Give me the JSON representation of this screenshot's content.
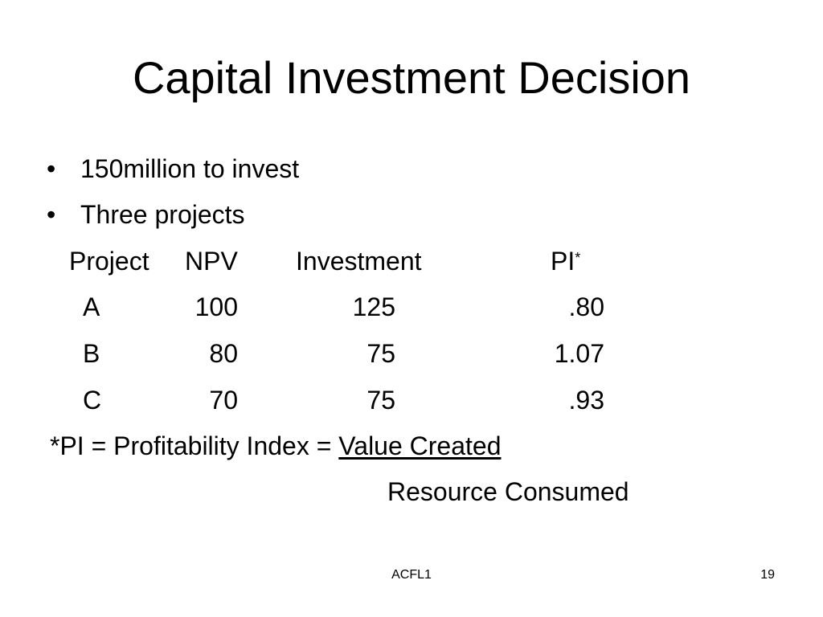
{
  "slide": {
    "title": "Capital Investment Decision",
    "bullets": [
      "150million to invest",
      "Three projects"
    ],
    "bullet_symbol": "•"
  },
  "table": {
    "headers": {
      "project": "Project",
      "npv": "NPV",
      "investment": "Investment",
      "pi": "PI",
      "pi_marker": "*"
    },
    "rows": [
      {
        "project": "A",
        "npv": "100",
        "investment": "125",
        "pi": ".80"
      },
      {
        "project": "B",
        "npv": "80",
        "investment": "75",
        "pi": "1.07"
      },
      {
        "project": "C",
        "npv": "70",
        "investment": "75",
        "pi": ".93"
      }
    ]
  },
  "definition": {
    "prefix": "*PI = Profitability Index = ",
    "numerator": "Value Created",
    "denominator": "Resource Consumed"
  },
  "footer": {
    "center": "ACFL1",
    "page_number": "19"
  }
}
